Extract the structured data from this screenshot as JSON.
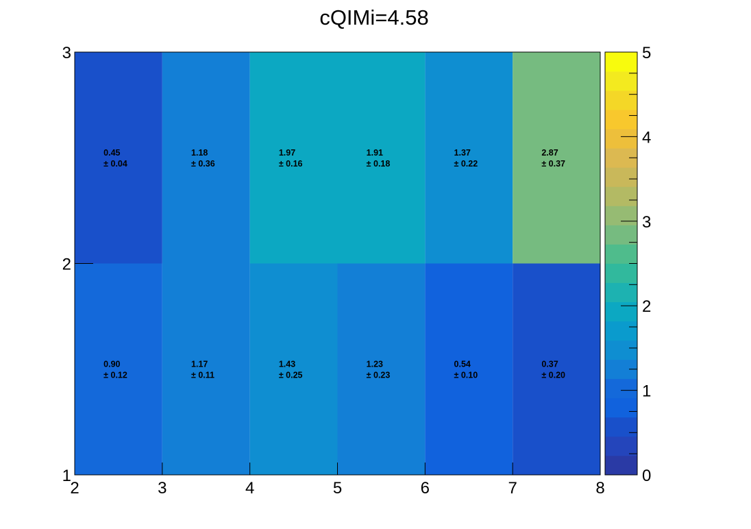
{
  "chart_data": {
    "type": "heatmap",
    "title": "cQIMi=4.58",
    "xlabel": "",
    "ylabel": "",
    "x_edges": [
      2,
      3,
      4,
      5,
      6,
      7,
      8
    ],
    "y_edges": [
      1,
      2,
      3
    ],
    "xlim": [
      2,
      8
    ],
    "ylim": [
      1,
      3
    ],
    "x_ticks": [
      "2",
      "3",
      "4",
      "5",
      "6",
      "7",
      "8"
    ],
    "y_ticks": [
      "1",
      "2",
      "3"
    ],
    "z_range": [
      0,
      5
    ],
    "colorbar_ticks": [
      "0",
      "1",
      "2",
      "3",
      "4",
      "5"
    ],
    "cells": [
      {
        "x": [
          2,
          3
        ],
        "y": [
          1,
          2
        ],
        "value": "0.90",
        "error": "± 0.12",
        "color": "#1469da"
      },
      {
        "x": [
          3,
          4
        ],
        "y": [
          1,
          2
        ],
        "value": "1.17",
        "error": "± 0.11",
        "color": "#137fd6"
      },
      {
        "x": [
          4,
          5
        ],
        "y": [
          1,
          2
        ],
        "value": "1.43",
        "error": "± 0.25",
        "color": "#0f8ed1"
      },
      {
        "x": [
          5,
          6
        ],
        "y": [
          1,
          2
        ],
        "value": "1.23",
        "error": "± 0.23",
        "color": "#137fd6"
      },
      {
        "x": [
          6,
          7
        ],
        "y": [
          1,
          2
        ],
        "value": "0.54",
        "error": "± 0.10",
        "color": "#1162dd"
      },
      {
        "x": [
          7,
          8
        ],
        "y": [
          1,
          2
        ],
        "value": "0.37",
        "error": "± 0.20",
        "color": "#1950ca"
      },
      {
        "x": [
          2,
          3
        ],
        "y": [
          2,
          3
        ],
        "value": "0.45",
        "error": "± 0.04",
        "color": "#1950ca"
      },
      {
        "x": [
          3,
          4
        ],
        "y": [
          2,
          3
        ],
        "value": "1.18",
        "error": "± 0.36",
        "color": "#137fd6"
      },
      {
        "x": [
          4,
          5
        ],
        "y": [
          2,
          3
        ],
        "value": "1.97",
        "error": "± 0.16",
        "color": "#0ca8c2"
      },
      {
        "x": [
          5,
          6
        ],
        "y": [
          2,
          3
        ],
        "value": "1.91",
        "error": "± 0.18",
        "color": "#0ca8c2"
      },
      {
        "x": [
          6,
          7
        ],
        "y": [
          2,
          3
        ],
        "value": "1.37",
        "error": "± 0.22",
        "color": "#0f8ed1"
      },
      {
        "x": [
          7,
          8
        ],
        "y": [
          2,
          3
        ],
        "value": "2.87",
        "error": "± 0.37",
        "color": "#76bb80"
      }
    ],
    "palette": [
      "#2a3aa5",
      "#2445bb",
      "#1950ca",
      "#1162dd",
      "#1469da",
      "#137fd6",
      "#0f8ed1",
      "#0a9bcd",
      "#0ca8c2",
      "#1db2b1",
      "#31b99d",
      "#4fbc8c",
      "#76bb80",
      "#96bb73",
      "#b3ba64",
      "#c9b85a",
      "#dcb951",
      "#edbf3b",
      "#f8c82d",
      "#f4d727",
      "#f3ea1f",
      "#f8fb0d"
    ]
  }
}
